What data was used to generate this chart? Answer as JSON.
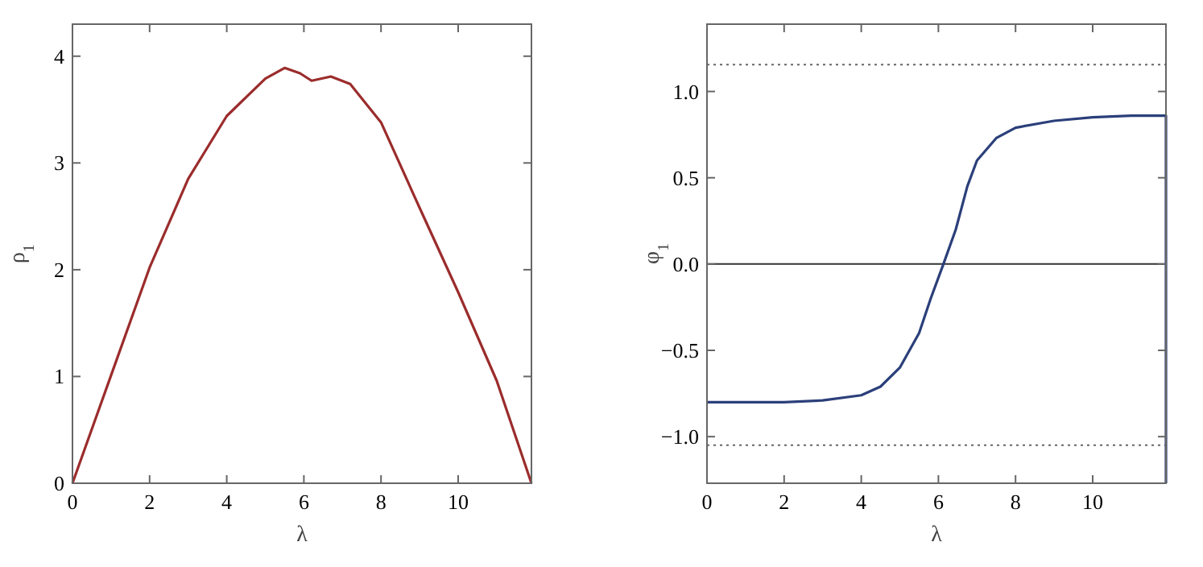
{
  "chart_data": [
    {
      "type": "line",
      "xlabel": "λ",
      "ylabel": "ρ$_{1}$",
      "xlim": [
        0,
        11.9
      ],
      "ylim": [
        0,
        4.3
      ],
      "xticks": [
        0,
        2,
        4,
        6,
        8,
        10
      ],
      "yticks": [
        0,
        1,
        2,
        3,
        4
      ],
      "grid": false,
      "series": [
        {
          "color": "#9b2c2c",
          "x": [
            0,
            1,
            2,
            3,
            4,
            5,
            5.5,
            5.9,
            6.2,
            6.7,
            7.2,
            8,
            9,
            10,
            11,
            11.9
          ],
          "values": [
            0,
            1.01,
            2.02,
            2.85,
            3.44,
            3.79,
            3.89,
            3.84,
            3.77,
            3.81,
            3.74,
            3.38,
            2.58,
            1.79,
            0.96,
            0
          ]
        }
      ]
    },
    {
      "type": "line",
      "xlabel": "λ",
      "ylabel": "φ$_{1}$",
      "xlim": [
        0,
        11.9
      ],
      "ylim": [
        -1.27,
        1.39
      ],
      "xticks": [
        0,
        2,
        4,
        6,
        8,
        10
      ],
      "yticks": [
        {
          "value": -1,
          "label": "−1.0"
        },
        {
          "value": -0.5,
          "label": "−0.5"
        },
        {
          "value": 0,
          "label": "0.0"
        },
        {
          "value": 0.5,
          "label": "0.5"
        },
        {
          "value": 1,
          "label": "1.0"
        }
      ],
      "grid": false,
      "ref_lines": [
        {
          "axis": "y",
          "value": 1.155,
          "color": "#666666",
          "line_style": "dotted"
        },
        {
          "axis": "y",
          "value": 0,
          "color": "#333333",
          "line_style": "solid"
        },
        {
          "axis": "y",
          "value": -1.05,
          "color": "#666666",
          "line_style": "dotted"
        }
      ],
      "series": [
        {
          "color": "#2b3f7a",
          "x": [
            0,
            2,
            3,
            4,
            4.5,
            5,
            5.5,
            5.8,
            6.13,
            6.45,
            6.75,
            7,
            7.5,
            8,
            9,
            10,
            11,
            11.9,
            11.9
          ],
          "values": [
            -0.8,
            -0.8,
            -0.79,
            -0.76,
            -0.71,
            -0.6,
            -0.4,
            -0.2,
            0,
            0.2,
            0.45,
            0.6,
            0.73,
            0.79,
            0.83,
            0.85,
            0.86,
            0.86,
            -1.27
          ]
        }
      ]
    }
  ]
}
